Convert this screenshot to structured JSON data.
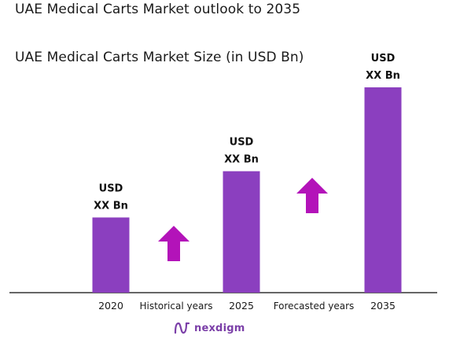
{
  "page": {
    "title": "UAE Medical Carts Market outlook to 2035"
  },
  "chart_data": {
    "type": "bar",
    "title": "UAE Medical Carts Market Size (in USD Bn)",
    "categories": [
      "2020",
      "2025",
      "2035"
    ],
    "values": [
      2.6,
      4.2,
      7.1
    ],
    "ylim": [
      0,
      7.4
    ],
    "data_labels": [
      [
        "USD",
        "XX Bn"
      ],
      [
        "USD",
        "XX Bn"
      ],
      [
        "USD",
        "XX Bn"
      ]
    ],
    "period_labels": [
      "Historical years",
      "Forecasted years"
    ],
    "bar_color": "#8b3fbf",
    "arrow_color": "#b313b9",
    "grid": false,
    "legend": "none"
  },
  "brand": {
    "name": "nexdigm",
    "color": "#7b3fa8",
    "icon": "nexdigm-logo-icon"
  }
}
